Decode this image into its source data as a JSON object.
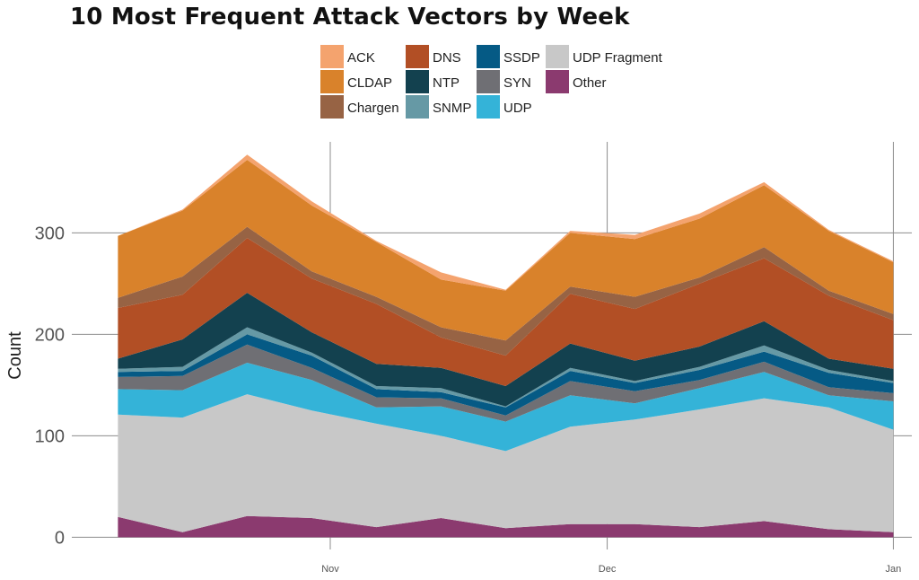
{
  "chart_data": {
    "type": "area",
    "stacked": true,
    "title": "10 Most Frequent Attack Vectors by Week",
    "ylabel": "Count",
    "xlabel": "",
    "x": [
      "2016-10-09",
      "2016-10-16",
      "2016-10-23",
      "2016-10-30",
      "2016-11-06",
      "2016-11-13",
      "2016-11-20",
      "2016-11-27",
      "2016-12-04",
      "2016-12-11",
      "2016-12-18",
      "2016-12-25",
      "2017-01-01"
    ],
    "x_ticks": [
      {
        "date": "2016-11-01",
        "label": "Nov"
      },
      {
        "date": "2016-12-01",
        "label": "Dec"
      },
      {
        "date": "2017-01-01",
        "label": "Jan"
      }
    ],
    "xlim": [
      "2016-10-04",
      "2017-01-03"
    ],
    "y_ticks": [
      0,
      100,
      200,
      300
    ],
    "ylim": [
      -12,
      395
    ],
    "grid": true,
    "legend_position": "top",
    "series": [
      {
        "name": "Other",
        "color": "#8B3A6F",
        "values": [
          20,
          5,
          21,
          19,
          10,
          19,
          9,
          13,
          13,
          10,
          16,
          8,
          5
        ]
      },
      {
        "name": "UDP Fragment",
        "color": "#C8C8C8",
        "values": [
          101,
          113,
          120,
          106,
          102,
          81,
          76,
          96,
          103,
          116,
          121,
          120,
          101
        ]
      },
      {
        "name": "UDP",
        "color": "#34B3D8",
        "values": [
          25,
          27,
          31,
          30,
          16,
          29,
          29,
          31,
          16,
          21,
          26,
          12,
          28
        ]
      },
      {
        "name": "SYN",
        "color": "#6F6F74",
        "values": [
          12,
          14,
          18,
          12,
          10,
          8,
          6,
          14,
          12,
          8,
          10,
          8,
          8
        ]
      },
      {
        "name": "SSDP",
        "color": "#055A85",
        "values": [
          5,
          5,
          10,
          12,
          8,
          6,
          8,
          10,
          8,
          10,
          10,
          14,
          10
        ]
      },
      {
        "name": "SNMP",
        "color": "#6699A5",
        "values": [
          3,
          4,
          7,
          3,
          3,
          4,
          1,
          3,
          2,
          3,
          6,
          3,
          2
        ]
      },
      {
        "name": "NTP",
        "color": "#13414F",
        "values": [
          10,
          27,
          34,
          20,
          22,
          20,
          20,
          24,
          20,
          20,
          24,
          11,
          12
        ]
      },
      {
        "name": "DNS",
        "color": "#B24F25",
        "values": [
          50,
          44,
          54,
          53,
          59,
          30,
          30,
          49,
          51,
          62,
          62,
          62,
          48
        ]
      },
      {
        "name": "Chargen",
        "color": "#976344",
        "values": [
          10,
          18,
          11,
          7,
          7,
          10,
          15,
          7,
          12,
          6,
          11,
          5,
          6
        ]
      },
      {
        "name": "CLDAP",
        "color": "#D9822B",
        "values": [
          61,
          65,
          66,
          65,
          54,
          47,
          49,
          53,
          57,
          58,
          61,
          59,
          51
        ]
      },
      {
        "name": "ACK",
        "color": "#F4A36E",
        "values": [
          0,
          1,
          5,
          4,
          1,
          7,
          1,
          2,
          4,
          5,
          3,
          1,
          1
        ]
      }
    ],
    "legend_order": [
      "ACK",
      "CLDAP",
      "Chargen",
      "DNS",
      "NTP",
      "SNMP",
      "SSDP",
      "SYN",
      "UDP",
      "UDP Fragment",
      "Other"
    ]
  }
}
